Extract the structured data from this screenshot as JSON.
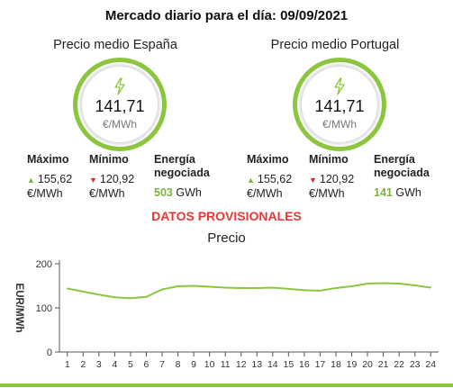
{
  "header": {
    "title": "Mercado diario para el día: 09/09/2021"
  },
  "markets": [
    {
      "label": "Precio medio España",
      "price": "141,71",
      "unit": "€/MWh",
      "max_label": "Máximo",
      "max_value": "155,62",
      "max_unit": "€/MWh",
      "min_label": "Mínimo",
      "min_value": "120,92",
      "min_unit": "€/MWh",
      "energy_label_1": "Energía",
      "energy_label_2": "negociada",
      "energy_value": "503",
      "energy_unit": "GWh"
    },
    {
      "label": "Precio medio Portugal",
      "price": "141,71",
      "unit": "€/MWh",
      "max_label": "Máximo",
      "max_value": "155,62",
      "max_unit": "€/MWh",
      "min_label": "Mínimo",
      "min_value": "120,92",
      "min_unit": "€/MWh",
      "energy_label_1": "Energía",
      "energy_label_2": "negociada",
      "energy_value": "141",
      "energy_unit": "GWh"
    }
  ],
  "notice": "DATOS PROVISIONALES",
  "colors": {
    "accent": "#8cc63f",
    "notice": "#e53935",
    "up": "#7cb342",
    "down": "#d32f2f"
  },
  "icons": {
    "gauge": "lightning-bolt-icon"
  },
  "chart_data": {
    "type": "line",
    "title": "Precio",
    "ylabel": "EUR/MWh",
    "xlabel": "",
    "x": [
      1,
      2,
      3,
      4,
      5,
      6,
      7,
      8,
      9,
      10,
      11,
      12,
      13,
      14,
      15,
      16,
      17,
      18,
      19,
      20,
      21,
      22,
      23,
      24
    ],
    "series": [
      {
        "values": [
          144,
          137,
          130,
          124,
          122,
          125,
          142,
          149,
          150,
          148,
          146,
          145,
          145,
          146,
          143,
          140,
          139,
          145,
          149,
          155,
          156,
          155,
          151,
          146
        ]
      }
    ],
    "ylim": [
      0,
      200
    ],
    "yticks": [
      0,
      100,
      200
    ],
    "grid": false,
    "color": "#8cc63f"
  }
}
